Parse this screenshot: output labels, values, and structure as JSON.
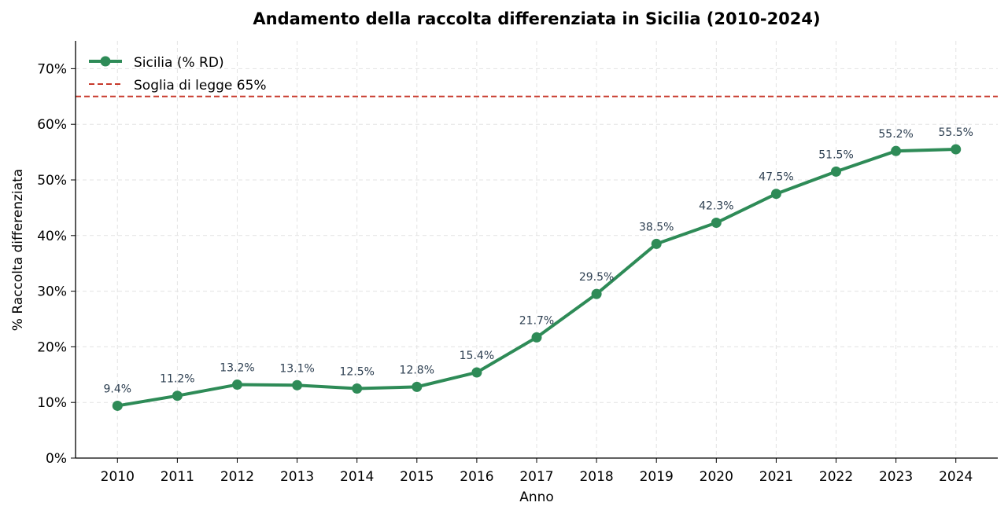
{
  "chart_data": {
    "type": "line",
    "title": "Andamento della raccolta differenziata in Sicilia (2010-2024)",
    "xlabel": "Anno",
    "ylabel": "% Raccolta differenziata",
    "x": [
      2010,
      2011,
      2012,
      2013,
      2014,
      2015,
      2016,
      2017,
      2018,
      2019,
      2020,
      2021,
      2022,
      2023,
      2024
    ],
    "series": [
      {
        "name": "Sicilia (% RD)",
        "color": "#2e8b57",
        "values": [
          9.4,
          11.2,
          13.2,
          13.1,
          12.5,
          12.8,
          15.4,
          21.7,
          29.5,
          38.5,
          42.3,
          47.5,
          51.5,
          55.2,
          55.5
        ],
        "data_labels": [
          "9.4%",
          "11.2%",
          "13.2%",
          "13.1%",
          "12.5%",
          "12.8%",
          "15.4%",
          "21.7%",
          "29.5%",
          "38.5%",
          "42.3%",
          "47.5%",
          "51.5%",
          "55.2%",
          "55.5%"
        ]
      }
    ],
    "reference_line": {
      "name": "Soglia di legge 65%",
      "value": 65,
      "color": "#c8392b",
      "style": "dashed"
    },
    "xlim": [
      2009.3,
      2024.7
    ],
    "ylim": [
      0,
      75
    ],
    "yticks": [
      0,
      10,
      20,
      30,
      40,
      50,
      60,
      70
    ],
    "ytick_labels": [
      "0%",
      "10%",
      "20%",
      "30%",
      "40%",
      "50%",
      "60%",
      "70%"
    ],
    "xtick_labels": [
      "2010",
      "2011",
      "2012",
      "2013",
      "2014",
      "2015",
      "2016",
      "2017",
      "2018",
      "2019",
      "2020",
      "2021",
      "2022",
      "2023",
      "2024"
    ],
    "grid": true,
    "legend_placement": "top-left",
    "data_label_color": "#2c3e50"
  }
}
